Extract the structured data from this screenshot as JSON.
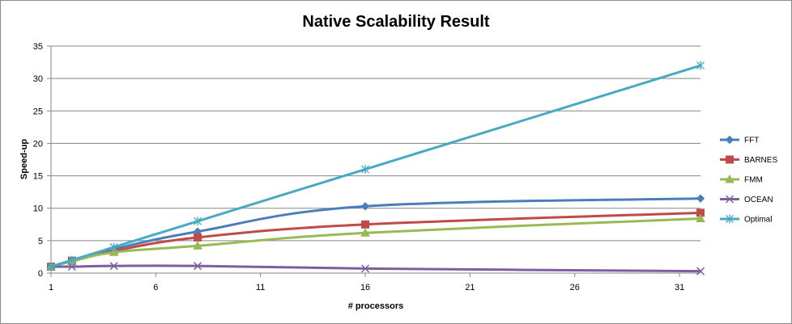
{
  "chart_data": {
    "type": "line",
    "title": "Native Scalability Result",
    "xlabel": "# processors",
    "ylabel": "Speed-up",
    "xlim": [
      1,
      32
    ],
    "ylim": [
      0,
      35
    ],
    "xticks": [
      1,
      6,
      11,
      16,
      21,
      26,
      31
    ],
    "yticks": [
      0,
      5,
      10,
      15,
      20,
      25,
      30,
      35
    ],
    "grid": "horizontal",
    "legend_position": "right",
    "x": [
      1,
      2,
      4,
      8,
      16,
      32
    ],
    "series": [
      {
        "name": "FFT",
        "values": [
          1,
          1.9,
          3.7,
          6.4,
          10.3,
          11.5
        ],
        "color": "#4a7ebb",
        "marker": "diamond"
      },
      {
        "name": "BARNES",
        "values": [
          1,
          1.9,
          3.4,
          5.5,
          7.5,
          9.3
        ],
        "color": "#be4b48",
        "marker": "square"
      },
      {
        "name": "FMM",
        "values": [
          1,
          1.8,
          3.2,
          4.2,
          6.2,
          8.4
        ],
        "color": "#98b954",
        "marker": "triangle"
      },
      {
        "name": "OCEAN",
        "values": [
          1,
          1,
          1.1,
          1.1,
          0.7,
          0.3
        ],
        "color": "#7d5fa0",
        "marker": "x"
      },
      {
        "name": "Optimal",
        "values": [
          1,
          2,
          4,
          8,
          16,
          32
        ],
        "color": "#46aac5",
        "marker": "asterisk"
      }
    ]
  }
}
